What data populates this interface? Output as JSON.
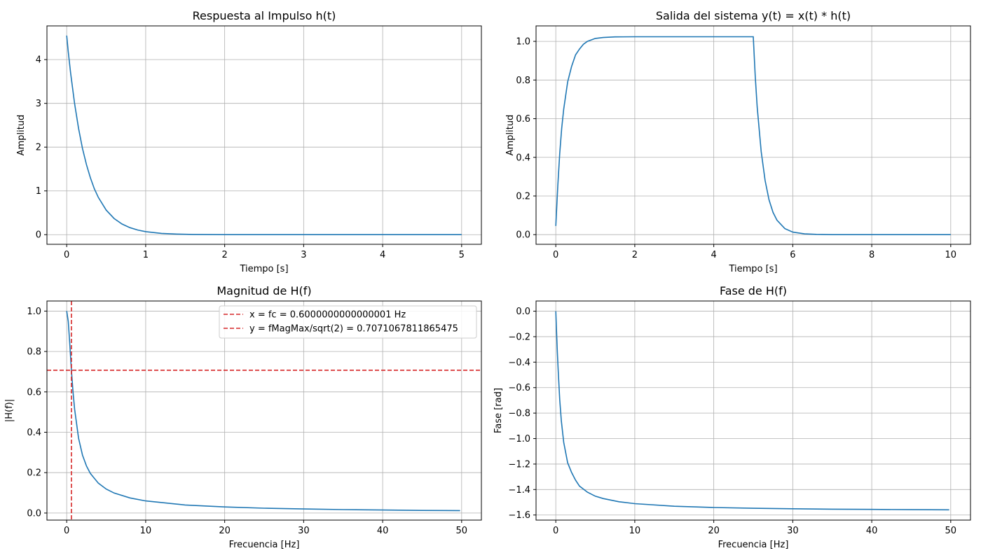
{
  "colors": {
    "series": "#1f77b4",
    "reference": "#d62728",
    "grid": "#b0b0b0"
  },
  "chart_data": [
    {
      "id": "impulse",
      "type": "line",
      "title": "Respuesta al Impulso h(t)",
      "xlabel": "Tiempo [s]",
      "ylabel": "Amplitud",
      "xlim": [
        -0.25,
        5.25
      ],
      "ylim": [
        -0.22,
        4.77
      ],
      "xticks": [
        0,
        1,
        2,
        3,
        4,
        5
      ],
      "yticks": [
        0,
        1,
        2,
        3,
        4
      ],
      "grid": true,
      "series": [
        {
          "x": [
            0,
            0.02,
            0.05,
            0.1,
            0.15,
            0.2,
            0.25,
            0.3,
            0.35,
            0.4,
            0.5,
            0.6,
            0.7,
            0.8,
            0.9,
            1.0,
            1.2,
            1.4,
            1.6,
            1.8,
            2.0,
            2.5,
            3.0,
            3.5,
            4.0,
            4.5,
            5.0
          ],
          "y": [
            4.55,
            4.18,
            3.69,
            2.99,
            2.43,
            1.97,
            1.6,
            1.3,
            1.05,
            0.853,
            0.562,
            0.37,
            0.244,
            0.161,
            0.106,
            0.07,
            0.03,
            0.013,
            0.006,
            0.002,
            0.001,
            0.0,
            0.0,
            0.0,
            0.0,
            0.0,
            0.0
          ]
        }
      ]
    },
    {
      "id": "output",
      "type": "line",
      "title": "Salida del sistema y(t) = x(t) * h(t)",
      "xlabel": "Tiempo [s]",
      "ylabel": "Amplitud",
      "xlim": [
        -0.5,
        10.5
      ],
      "ylim": [
        -0.05,
        1.08
      ],
      "xticks": [
        0,
        2,
        4,
        6,
        8,
        10
      ],
      "yticks": [
        0.0,
        0.2,
        0.4,
        0.6,
        0.8,
        1.0
      ],
      "grid": true,
      "series": [
        {
          "x": [
            0,
            0.05,
            0.1,
            0.15,
            0.2,
            0.3,
            0.4,
            0.5,
            0.6,
            0.7,
            0.8,
            1.0,
            1.2,
            1.5,
            2.0,
            3.0,
            4.0,
            5.0,
            5.05,
            5.1,
            5.2,
            5.3,
            5.4,
            5.5,
            5.6,
            5.8,
            6.0,
            6.3,
            6.6,
            7.0,
            8.0,
            9.0,
            10.0
          ],
          "y": [
            0.045,
            0.25,
            0.42,
            0.55,
            0.65,
            0.79,
            0.87,
            0.93,
            0.96,
            0.985,
            1.0,
            1.015,
            1.02,
            1.023,
            1.024,
            1.024,
            1.024,
            1.024,
            0.82,
            0.66,
            0.43,
            0.28,
            0.18,
            0.115,
            0.075,
            0.031,
            0.013,
            0.004,
            0.0015,
            0.0,
            0.0,
            0.0,
            0.0
          ]
        }
      ]
    },
    {
      "id": "magnitude",
      "type": "line",
      "title": "Magnitud de H(f)",
      "xlabel": "Frecuencia [Hz]",
      "ylabel": "|H(f)|",
      "xlim": [
        -2.5,
        52.5
      ],
      "ylim": [
        -0.035,
        1.05
      ],
      "xticks": [
        0,
        10,
        20,
        30,
        40,
        50
      ],
      "yticks": [
        0.0,
        0.2,
        0.4,
        0.6,
        0.8,
        1.0
      ],
      "grid": true,
      "legend": "top-right",
      "series": [
        {
          "x": [
            0,
            0.2,
            0.4,
            0.6,
            0.8,
            1.0,
            1.5,
            2.0,
            2.5,
            3.0,
            4.0,
            5.0,
            6.0,
            8.0,
            10.0,
            15.0,
            20.0,
            25.0,
            30.0,
            35.0,
            40.0,
            45.0,
            49.8
          ],
          "y": [
            1.0,
            0.949,
            0.832,
            0.707,
            0.6,
            0.514,
            0.371,
            0.287,
            0.233,
            0.196,
            0.148,
            0.119,
            0.099,
            0.075,
            0.06,
            0.04,
            0.03,
            0.024,
            0.02,
            0.017,
            0.015,
            0.013,
            0.012
          ]
        }
      ],
      "reference_lines": [
        {
          "orientation": "vertical",
          "value": 0.6000000000000001,
          "label": "x = fc = 0.6000000000000001 Hz"
        },
        {
          "orientation": "horizontal",
          "value": 0.7071067811865475,
          "label": "y = fMagMax/sqrt(2) = 0.7071067811865475"
        }
      ]
    },
    {
      "id": "phase",
      "type": "line",
      "title": "Fase de H(f)",
      "xlabel": "Frecuencia [Hz]",
      "ylabel": "Fase [rad]",
      "xlim": [
        -2.5,
        52.5
      ],
      "ylim": [
        -1.64,
        0.08
      ],
      "xticks": [
        0,
        10,
        20,
        30,
        40,
        50
      ],
      "yticks": [
        0.0,
        -0.2,
        -0.4,
        -0.6,
        -0.8,
        -1.0,
        -1.2,
        -1.4,
        -1.6
      ],
      "grid": true,
      "series": [
        {
          "x": [
            0,
            0.1,
            0.2,
            0.3,
            0.5,
            0.7,
            1.0,
            1.5,
            2.0,
            2.5,
            3.0,
            4.0,
            5.0,
            6.0,
            8.0,
            10.0,
            15.0,
            20.0,
            25.0,
            30.0,
            35.0,
            40.0,
            45.0,
            49.8
          ],
          "y": [
            0.0,
            -0.165,
            -0.322,
            -0.464,
            -0.695,
            -0.862,
            -1.03,
            -1.19,
            -1.266,
            -1.327,
            -1.373,
            -1.421,
            -1.452,
            -1.471,
            -1.496,
            -1.511,
            -1.531,
            -1.541,
            -1.547,
            -1.551,
            -1.554,
            -1.556,
            -1.558,
            -1.559
          ]
        }
      ]
    }
  ]
}
